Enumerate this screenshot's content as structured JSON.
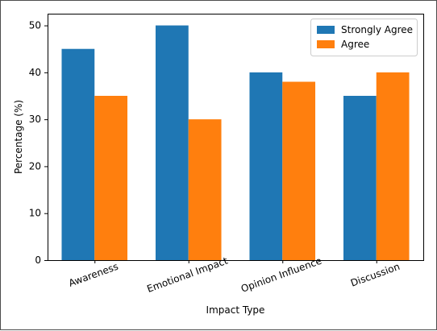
{
  "chart_data": {
    "type": "bar",
    "categories": [
      "Awareness",
      "Emotional Impact",
      "Opinion Influence",
      "Discussion"
    ],
    "series": [
      {
        "name": "Strongly Agree",
        "values": [
          45,
          50,
          40,
          35
        ],
        "color": "#1f77b4"
      },
      {
        "name": "Agree",
        "values": [
          35,
          30,
          38,
          40
        ],
        "color": "#ff7f0e"
      }
    ],
    "xlabel": "Impact Type",
    "ylabel": "Percentage (%)",
    "ylim": [
      0,
      52.5
    ],
    "yticks": [
      0,
      10,
      20,
      30,
      40,
      50
    ],
    "x_tick_rotation_deg": -20,
    "legend_position": "upper right",
    "grid": false
  }
}
